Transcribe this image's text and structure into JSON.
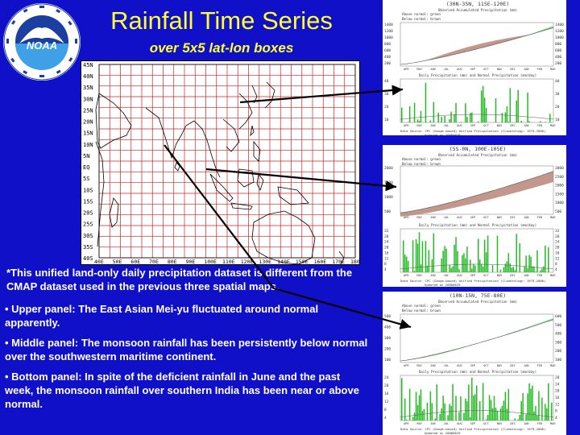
{
  "slide": {
    "title": "Rainfall Time Series",
    "subtitle": "over 5x5 lat-lon boxes"
  },
  "logo": {
    "name": "NOAA",
    "ring_text": "NATIONAL OCEANIC AND ATMOSPHERIC ADMINISTRATION · U.S. DEPARTMENT OF COMMERCE",
    "colors": {
      "ring": "#ffffff",
      "sky": "#1a3f9e",
      "sea": "#3fa0e8",
      "bird": "#ffffff"
    }
  },
  "map": {
    "lat_labels": [
      "45N",
      "40N",
      "35N",
      "30N",
      "25N",
      "20N",
      "15N",
      "10N",
      "5N",
      "EQ",
      "5S",
      "10S",
      "15S",
      "20S",
      "25S",
      "30S",
      "35S",
      "40S"
    ],
    "lon_labels": [
      "40E",
      "50E",
      "60E",
      "70E",
      "80E",
      "90E",
      "100E",
      "110E",
      "120E",
      "130E",
      "140E",
      "150E",
      "160E",
      "170E",
      "180"
    ],
    "grid_color": "#d42020"
  },
  "notes": {
    "intro": "*This unified land-only daily precipitation dataset is different from the CMAP dataset used in the previous three spatial maps.",
    "upper": "• Upper panel: The East Asian Mei-yu fluctuated around normal apparently.",
    "middle": "• Middle panel: The monsoon rainfall has been persistently below normal over the southwestern maritime continent.",
    "bottom": "• Bottom panel: In spite of the deficient rainfall in June and the past week, the monsoon rainfall over southern India has been near or above normal."
  },
  "panels": [
    {
      "box": "(30N-35N, 115E-120E)",
      "header": "Observed Accumulated Precipitation (mm)",
      "legend_above": "Above normal: green",
      "legend_below": "Below normal: brown",
      "accum_ticks": [
        "1400",
        "1200",
        "1000",
        "800",
        "600",
        "400",
        "200"
      ],
      "accum_ticks_right": [
        "1400",
        "1200",
        "1000",
        "800",
        "600",
        "400",
        "200"
      ],
      "daily_header": "Daily Precipitation (mm) and Normal Precipitation (mm/day)",
      "daily_ticks": [
        "40",
        "30",
        "20",
        "10"
      ],
      "daily_ticks_right": [
        "40",
        "30",
        "20",
        "10"
      ],
      "source": "Data Source: CPC (Gauge-based) Unified Precipitation (Climatology: 1979-2000)",
      "updated": "Updated on 20080629",
      "months": [
        "APR",
        "MAY",
        "JUN",
        "JUL",
        "AUG",
        "SEP",
        "OCT",
        "NOV",
        "DEC",
        "JAN",
        "FEB",
        "MAR"
      ]
    },
    {
      "box": "(5S-0N, 100E-105E)",
      "header": "Observed Accumulated Precipitation (mm)",
      "legend_above": "Above normal: green",
      "legend_below": "Below normal: brown",
      "accum_ticks": [
        "2000",
        "1500",
        "1000",
        "500"
      ],
      "accum_ticks_right": [
        "3000",
        "2500",
        "2000",
        "1500",
        "1000",
        "500"
      ],
      "daily_header": "Daily Precipitation (mm) and Normal Precipitation (mm/day)",
      "daily_ticks": [
        "32",
        "28",
        "24",
        "20",
        "16",
        "12",
        "8",
        "4"
      ],
      "daily_ticks_right": [
        "32",
        "28",
        "24",
        "20",
        "16",
        "12",
        "8",
        "4"
      ],
      "source": "Data Source: CPC (Gauge-based) Unified Precipitation (Climatology: 1979-2000)",
      "updated": "Updated on 20080629",
      "months": [
        "APR",
        "MAY",
        "JUN",
        "JUL",
        "AUG",
        "SEP",
        "OCT",
        "NOV",
        "DEC",
        "JAN",
        "FEB",
        "MAR"
      ]
    },
    {
      "box": "(10N-15N, 75E-80E)",
      "header": "Observed Accumulated Precipitation (mm)",
      "legend_above": "Above normal: green",
      "legend_below": "Below normal: brown",
      "accum_ticks": [
        "500",
        "400",
        "300",
        "200",
        "100"
      ],
      "accum_ticks_right": [
        "600",
        "500",
        "400",
        "300",
        "200",
        "100"
      ],
      "daily_header": "Daily Precipitation (mm) and Normal Precipitation (mm/day)",
      "daily_ticks": [
        "24",
        "20",
        "16",
        "12",
        "8",
        "4"
      ],
      "daily_ticks_right": [
        "28",
        "24",
        "20",
        "16",
        "12",
        "8",
        "4"
      ],
      "source": "Data Source: CPC (Gauge-based) Unified Precipitation (Climatology: 1979-2000)",
      "updated": "Updated on 20080629",
      "months": [
        "APR",
        "MAY",
        "JUN",
        "JUL",
        "AUG",
        "SEP",
        "OCT",
        "NOV",
        "DEC",
        "JAN",
        "FEB",
        "MAR"
      ]
    }
  ],
  "colors": {
    "background": "#1010c8",
    "title": "#ffff33",
    "text": "#ffffff",
    "bars": "#22bb22",
    "deficit": "#b98577",
    "surplus": "#7bd27b",
    "normal_line": "#555555"
  }
}
